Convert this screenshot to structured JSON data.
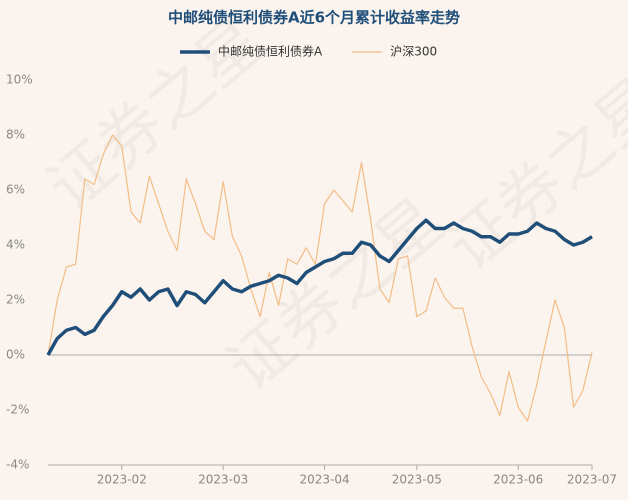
{
  "chart_data": {
    "type": "line",
    "title": "中邮纯债恒利债券A近6个月累计收益率走势",
    "watermark": "证券之星",
    "categories": [
      null,
      null,
      null,
      null,
      null,
      null,
      null,
      null,
      "2023-02",
      null,
      null,
      null,
      null,
      null,
      null,
      null,
      null,
      null,
      null,
      "2023-03",
      null,
      null,
      null,
      null,
      null,
      null,
      null,
      null,
      null,
      null,
      "2023-04",
      null,
      null,
      null,
      null,
      null,
      null,
      null,
      null,
      null,
      "2023-05",
      null,
      null,
      null,
      null,
      null,
      null,
      null,
      null,
      null,
      null,
      "2023-06",
      null,
      null,
      null,
      null,
      null,
      null,
      null,
      "2023-07"
    ],
    "series": [
      {
        "name": "中邮纯债恒利债券A",
        "color": "#1f4e79",
        "width": 3.5,
        "values": [
          0,
          0.6,
          0.9,
          1.0,
          0.75,
          0.9,
          1.4,
          1.8,
          2.3,
          2.1,
          2.4,
          2.0,
          2.3,
          2.4,
          1.8,
          2.3,
          2.2,
          1.9,
          2.3,
          2.7,
          2.4,
          2.3,
          2.5,
          2.6,
          2.7,
          2.9,
          2.8,
          2.6,
          3.0,
          3.2,
          3.4,
          3.5,
          3.7,
          3.7,
          4.1,
          4.0,
          3.6,
          3.4,
          3.8,
          4.2,
          4.6,
          4.9,
          4.6,
          4.6,
          4.8,
          4.6,
          4.5,
          4.3,
          4.3,
          4.1,
          4.4,
          4.4,
          4.5,
          4.8,
          4.6,
          4.5,
          4.2,
          4.0,
          4.1,
          4.3
        ]
      },
      {
        "name": "沪深300",
        "color": "#f2bc86",
        "width": 1.2,
        "values": [
          0,
          2.0,
          3.2,
          3.3,
          6.4,
          6.2,
          7.3,
          8.0,
          7.6,
          5.2,
          4.8,
          6.5,
          5.5,
          4.5,
          3.8,
          6.4,
          5.5,
          4.5,
          4.2,
          6.3,
          4.3,
          3.6,
          2.4,
          1.4,
          3.0,
          1.8,
          3.5,
          3.3,
          3.9,
          3.3,
          5.5,
          6.0,
          5.6,
          5.2,
          7.0,
          4.9,
          2.4,
          1.9,
          3.5,
          3.6,
          1.4,
          1.6,
          2.8,
          2.1,
          1.7,
          1.7,
          0.3,
          -0.8,
          -1.4,
          -2.2,
          -0.6,
          -1.9,
          -2.4,
          -1.1,
          0.5,
          2.0,
          1.0,
          -1.9,
          -1.3,
          0.1
        ]
      }
    ],
    "ylim": [
      -4,
      10
    ],
    "yticks": [
      {
        "value": -4,
        "label": "-4%"
      },
      {
        "value": -2,
        "label": "-2%"
      },
      {
        "value": 0,
        "label": "0%"
      },
      {
        "value": 2,
        "label": "2%"
      },
      {
        "value": 4,
        "label": "4%"
      },
      {
        "value": 6,
        "label": "6%"
      },
      {
        "value": 8,
        "label": "8%"
      },
      {
        "value": 10,
        "label": "10%"
      }
    ]
  }
}
